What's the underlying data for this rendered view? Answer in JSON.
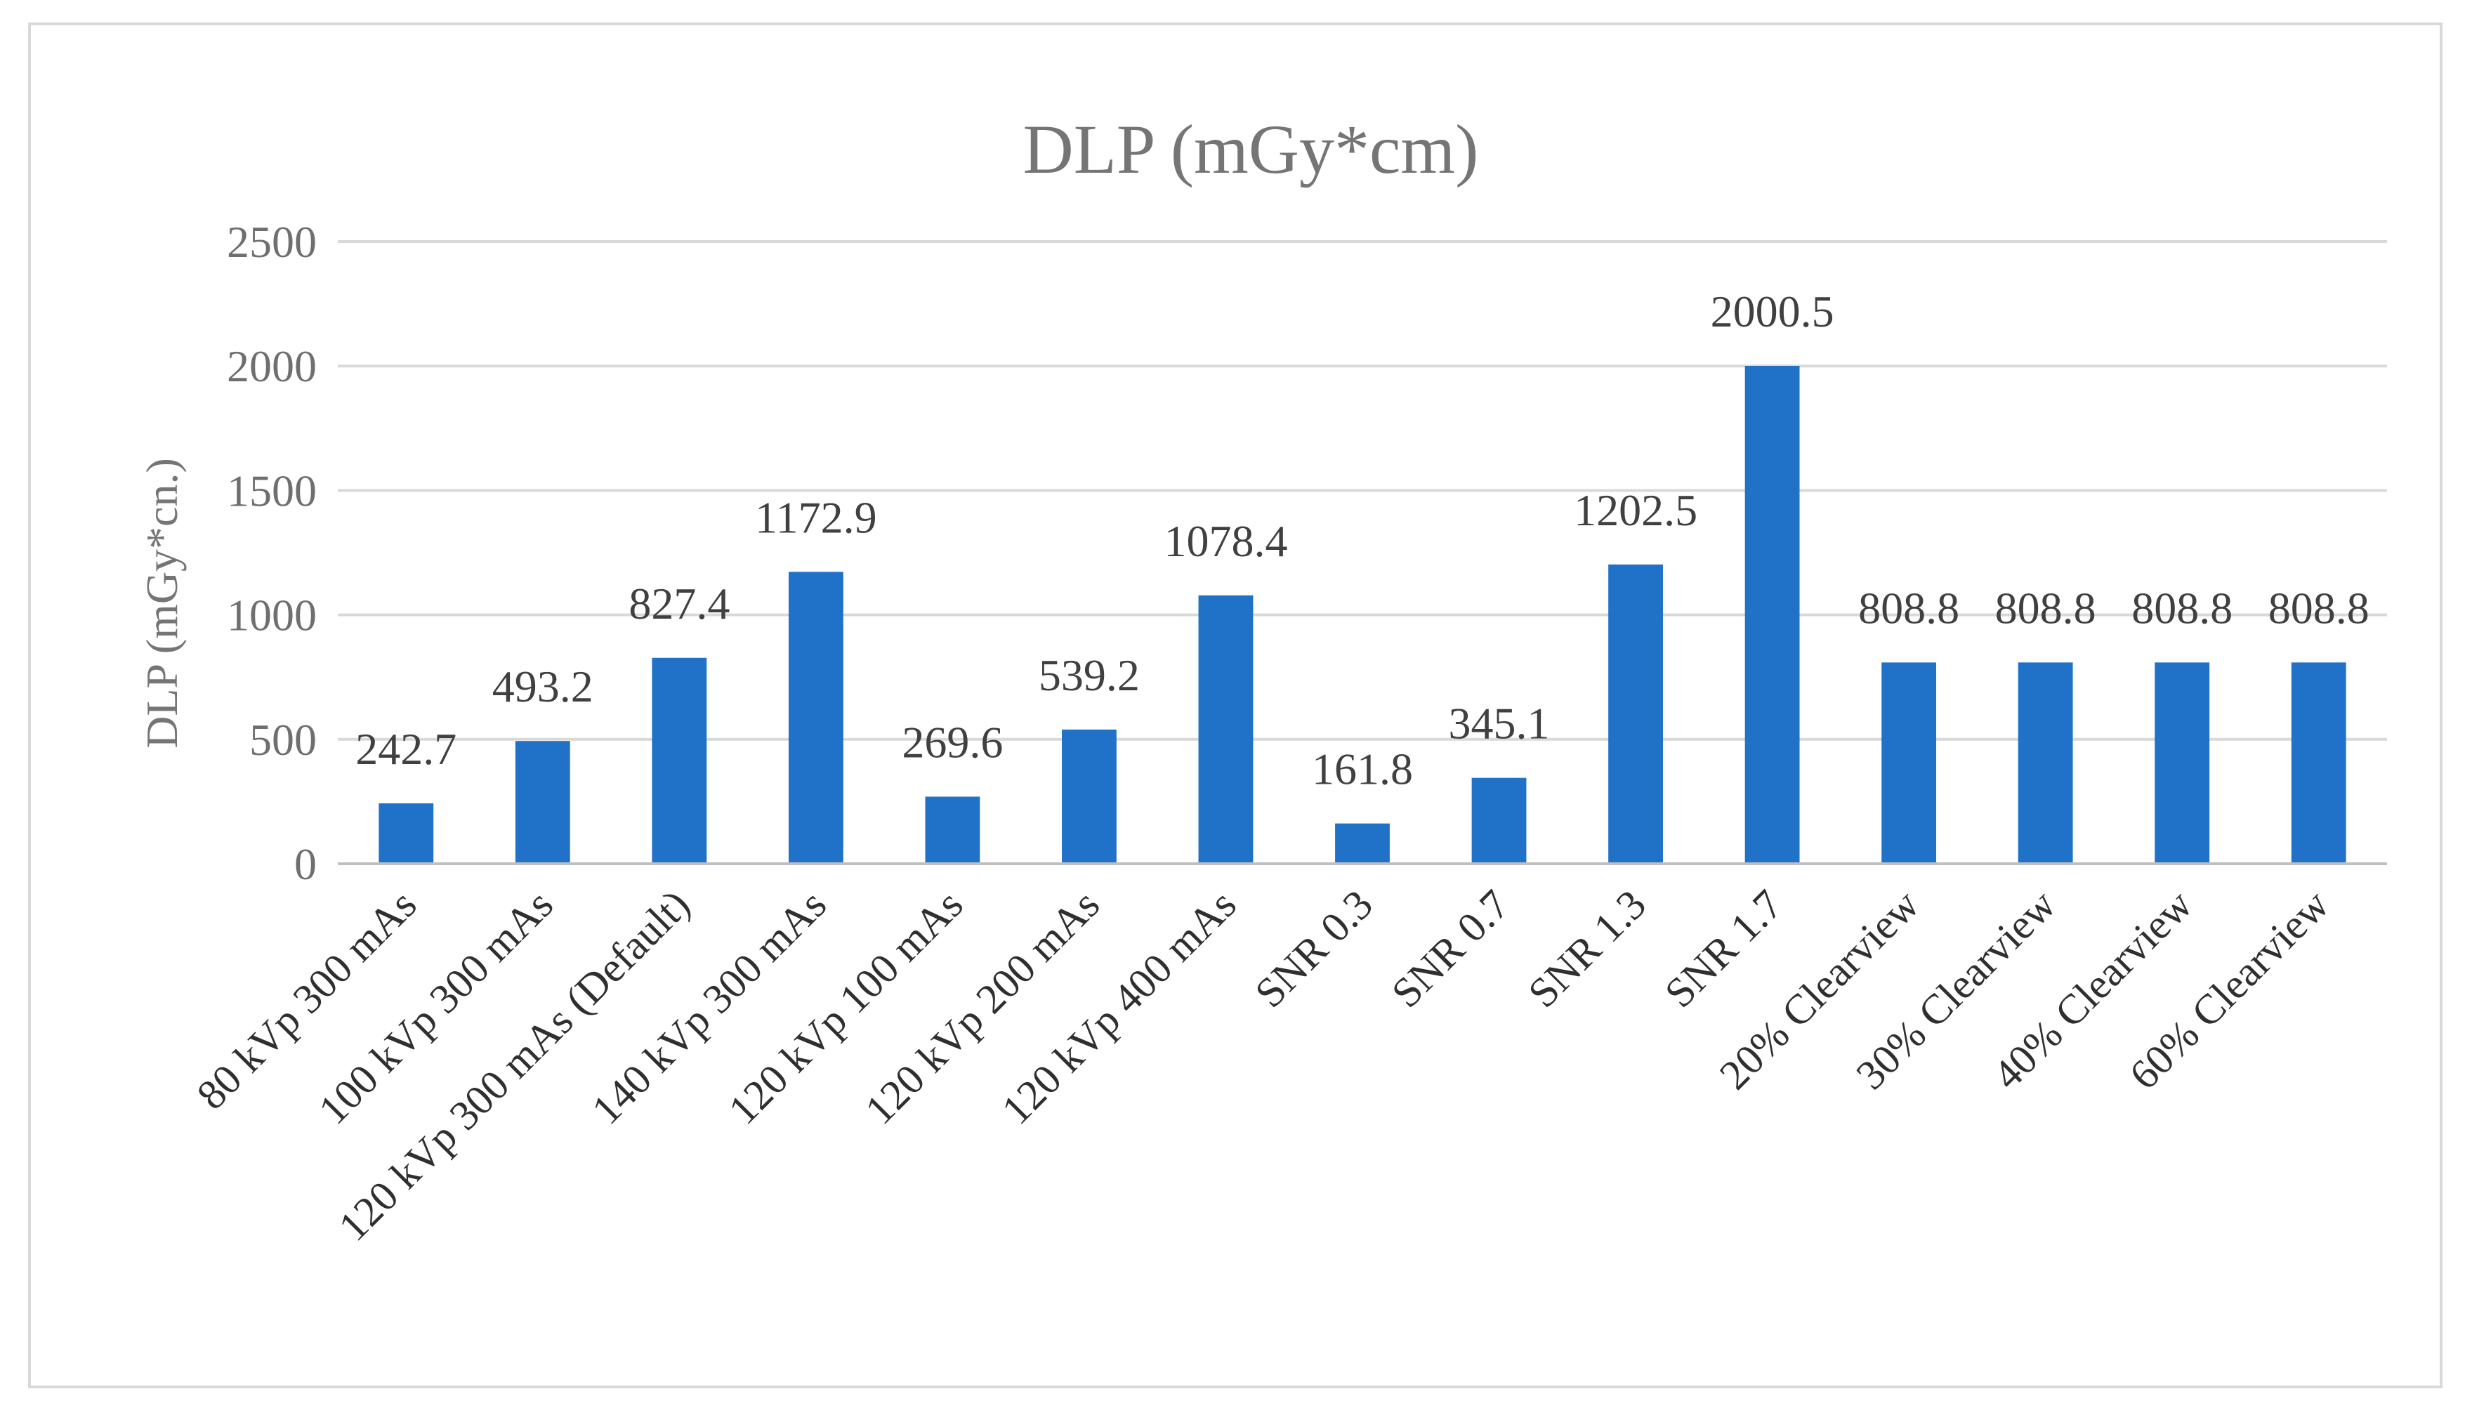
{
  "chart_data": {
    "type": "bar",
    "title": "DLP (mGy*cm)",
    "xlabel": "",
    "ylabel": "DLP (mGy*cn.)",
    "ylim": [
      0,
      2500
    ],
    "yticks": [
      0,
      500,
      1000,
      1500,
      2000,
      2500
    ],
    "grid": true,
    "legend": "none",
    "categories": [
      "80 kVp 300 mAs",
      "100 kVp 300 mAs",
      "120 kVp 300 mAs (Default)",
      "140 kVp 300 mAs",
      "120 kVp 100 mAs",
      "120 kVp 200 mAs",
      "120 kVp 400 mAs",
      "SNR 0.3",
      "SNR 0.7",
      "SNR 1.3",
      "SNR 1.7",
      "20% Clearview",
      "30% Clearview",
      "40% Clearview",
      "60% Clearview"
    ],
    "values": [
      242.7,
      493.2,
      827.4,
      1172.9,
      269.6,
      539.2,
      1078.4,
      161.8,
      345.1,
      1202.5,
      2000.5,
      808.8,
      808.8,
      808.8,
      808.8
    ],
    "data_labels": [
      "242.7",
      "493.2",
      "827.4",
      "1172.9",
      "269.6",
      "539.2",
      "1078.4",
      "161.8",
      "345.1",
      "1202.5",
      "2000.5",
      "808.8",
      "808.8",
      "808.8",
      "808.8"
    ],
    "colors": {
      "bar": "#1f72c7",
      "grid": "#d9d9d9",
      "text": "#757575"
    }
  }
}
